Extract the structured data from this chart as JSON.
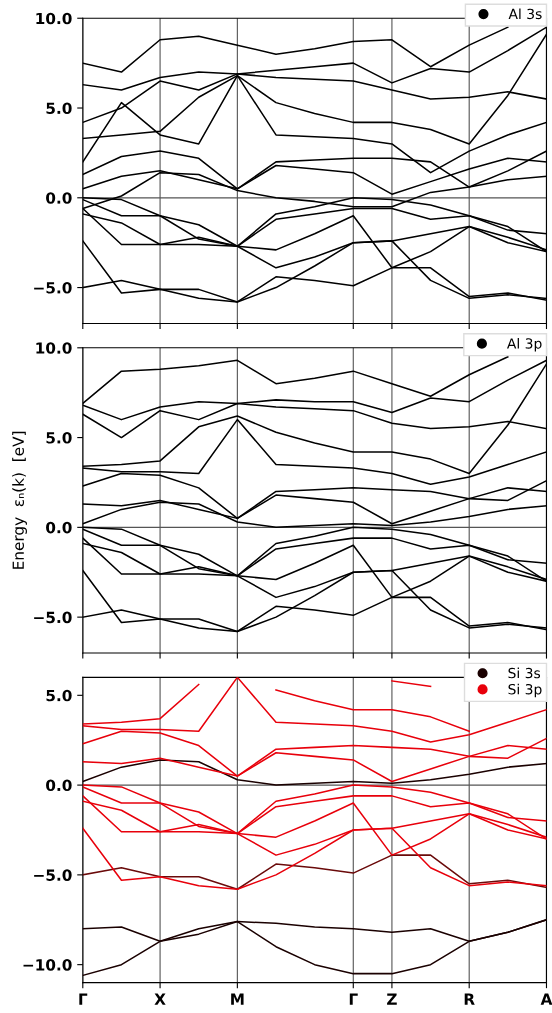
{
  "chart_data": [
    {
      "type": "line",
      "legend": "top right",
      "grid": "x",
      "tick_labels": "y",
      "line_style": "solid",
      "categories": [
        null,
        null,
        null,
        null,
        null,
        null,
        null,
        null,
        null,
        null,
        null,
        null,
        null
      ],
      "ylim": [
        -7,
        10
      ],
      "yticks": [
        {
          "value": -5,
          "label": "−5.0"
        },
        {
          "value": 0,
          "label": "0.0"
        },
        {
          "value": 5,
          "label": "5.0"
        },
        {
          "value": 10,
          "label": "10.0"
        }
      ],
      "ref_lines": [
        {
          "axis": "y",
          "value": 0,
          "color": "#555555"
        }
      ],
      "series": [
        {
          "name": "Al 3s",
          "color": "#000000",
          "values": [
            -5.0,
            -4.6,
            -5.1,
            -5.1,
            -5.8,
            -4.4,
            -4.6,
            -4.9,
            -3.9,
            -3.9,
            -5.5,
            -5.3,
            -5.7
          ]
        },
        {
          "color": "#000000",
          "values": [
            -2.4,
            -5.3,
            -5.1,
            -5.6,
            -5.8,
            -5.0,
            -3.8,
            -2.5,
            -2.4,
            -4.6,
            -5.6,
            -5.4,
            -5.6
          ]
        },
        {
          "color": "#000000",
          "values": [
            -0.9,
            -1.4,
            -2.6,
            -2.6,
            -2.7,
            -3.9,
            -3.3,
            -2.5,
            -2.4,
            -2.0,
            -1.6,
            -2.2,
            -2.9
          ]
        },
        {
          "color": "#000000",
          "values": [
            -0.6,
            -2.6,
            -2.6,
            -2.2,
            -2.7,
            -2.9,
            -2.0,
            -1.0,
            -3.9,
            -3.0,
            -1.6,
            -2.5,
            -3.0
          ]
        },
        {
          "color": "#000000",
          "values": [
            -0.1,
            -1.0,
            -1.0,
            -2.3,
            -2.7,
            -1.2,
            -0.9,
            -0.6,
            -0.6,
            -1.2,
            -1.0,
            -1.6,
            -3.0
          ]
        },
        {
          "color": "#000000",
          "values": [
            0.0,
            -0.1,
            -1.0,
            -1.5,
            -2.7,
            -0.9,
            -0.5,
            0.0,
            -0.1,
            -0.4,
            -1.0,
            -1.8,
            -2.0
          ]
        },
        {
          "color": "#000000",
          "values": [
            -0.6,
            0.1,
            1.4,
            1.3,
            0.4,
            0.0,
            -0.2,
            -0.5,
            -0.5,
            0.3,
            0.6,
            1.0,
            1.2
          ]
        },
        {
          "color": "#000000",
          "values": [
            0.5,
            1.2,
            1.5,
            1.0,
            0.5,
            1.8,
            1.6,
            1.4,
            0.2,
            0.9,
            1.6,
            2.2,
            2.0
          ]
        },
        {
          "color": "#000000",
          "values": [
            1.3,
            2.3,
            2.6,
            2.2,
            0.5,
            2.0,
            2.1,
            2.2,
            2.2,
            2.0,
            0.6,
            1.5,
            2.6
          ]
        },
        {
          "color": "#000000",
          "values": [
            2.0,
            5.3,
            3.5,
            3.0,
            6.8,
            3.5,
            3.4,
            3.3,
            3.0,
            1.4,
            2.6,
            3.5,
            4.2
          ]
        },
        {
          "color": "#000000",
          "values": [
            3.3,
            3.5,
            3.7,
            5.6,
            6.8,
            5.3,
            4.7,
            4.2,
            4.2,
            3.8,
            3.0,
            5.7,
            9.1
          ]
        },
        {
          "color": "#000000",
          "values": [
            4.2,
            5.0,
            6.5,
            6.0,
            6.9,
            6.7,
            6.6,
            6.5,
            6.0,
            5.5,
            5.6,
            5.9,
            5.5
          ]
        },
        {
          "color": "#000000",
          "values": [
            6.3,
            6.0,
            6.7,
            7.0,
            6.9,
            7.1,
            7.3,
            7.5,
            6.4,
            7.2,
            7.0,
            8.2,
            9.5
          ]
        },
        {
          "color": "#000000",
          "values": [
            7.5,
            7.0,
            8.8,
            9.0,
            8.5,
            8.0,
            8.3,
            8.7,
            8.8,
            7.3,
            8.5,
            9.5,
            null
          ]
        }
      ]
    },
    {
      "type": "line",
      "legend": "top right",
      "grid": "x",
      "tick_labels": "y",
      "line_style": "solid",
      "ylabel": "Energy  εₙ(k)  [eV]",
      "categories": [
        null,
        null,
        null,
        null,
        null,
        null,
        null,
        null,
        null,
        null,
        null,
        null,
        null
      ],
      "ylim": [
        -7,
        10
      ],
      "yticks": [
        {
          "value": -5,
          "label": "−5.0"
        },
        {
          "value": 0,
          "label": "0.0"
        },
        {
          "value": 5,
          "label": "5.0"
        },
        {
          "value": 10,
          "label": "10.0"
        }
      ],
      "ref_lines": [
        {
          "axis": "y",
          "value": 0,
          "color": "#555555"
        }
      ],
      "series": [
        {
          "name": "Al 3p",
          "color": "#000000",
          "values": [
            -5.0,
            -4.6,
            -5.1,
            -5.1,
            -5.8,
            -4.4,
            -4.6,
            -4.9,
            -3.9,
            -3.9,
            -5.5,
            -5.3,
            -5.7
          ]
        },
        {
          "color": "#000000",
          "values": [
            -2.4,
            -5.3,
            -5.1,
            -5.6,
            -5.8,
            -5.0,
            -3.8,
            -2.5,
            -2.4,
            -4.6,
            -5.6,
            -5.4,
            -5.6
          ]
        },
        {
          "color": "#000000",
          "values": [
            -0.9,
            -1.4,
            -2.6,
            -2.6,
            -2.7,
            -3.9,
            -3.3,
            -2.5,
            -2.4,
            -2.0,
            -1.6,
            -2.2,
            -2.9
          ]
        },
        {
          "color": "#000000",
          "values": [
            -0.6,
            -2.6,
            -2.6,
            -2.2,
            -2.7,
            -2.9,
            -2.0,
            -1.0,
            -3.9,
            -3.0,
            -1.6,
            -2.5,
            -3.0
          ]
        },
        {
          "color": "#000000",
          "values": [
            -0.1,
            -1.0,
            -1.0,
            -2.3,
            -2.7,
            -1.2,
            -0.9,
            -0.6,
            -0.6,
            -1.2,
            -1.0,
            -1.6,
            -3.0
          ]
        },
        {
          "color": "#000000",
          "values": [
            0.0,
            -0.1,
            -1.0,
            -1.5,
            -2.7,
            -0.9,
            -0.5,
            0.0,
            -0.1,
            -0.4,
            -1.0,
            -1.8,
            -2.0
          ]
        },
        {
          "color": "#000000",
          "values": [
            0.2,
            1.0,
            1.4,
            1.3,
            0.3,
            0.0,
            0.1,
            0.2,
            0.1,
            0.3,
            0.6,
            1.0,
            1.2
          ]
        },
        {
          "color": "#000000",
          "values": [
            1.3,
            1.2,
            1.5,
            1.0,
            0.5,
            1.8,
            1.6,
            1.4,
            0.2,
            0.9,
            1.6,
            2.2,
            2.0
          ]
        },
        {
          "color": "#000000",
          "values": [
            2.3,
            3.0,
            2.9,
            2.2,
            0.5,
            2.0,
            2.1,
            2.2,
            2.1,
            2.0,
            1.6,
            1.5,
            2.6
          ]
        },
        {
          "color": "#000000",
          "values": [
            3.3,
            3.1,
            3.1,
            3.0,
            6.0,
            3.5,
            3.4,
            3.3,
            3.0,
            2.4,
            2.8,
            3.5,
            4.2
          ]
        },
        {
          "color": "#000000",
          "values": [
            3.4,
            3.5,
            3.7,
            5.6,
            6.2,
            5.3,
            4.7,
            4.2,
            4.2,
            3.8,
            3.0,
            5.7,
            9.1
          ]
        },
        {
          "color": "#000000",
          "values": [
            6.3,
            5.0,
            6.5,
            6.0,
            6.9,
            6.7,
            6.6,
            6.5,
            5.8,
            5.5,
            5.6,
            5.9,
            5.5
          ]
        },
        {
          "color": "#000000",
          "values": [
            6.8,
            6.0,
            6.7,
            7.0,
            6.9,
            7.1,
            7.0,
            7.0,
            6.4,
            7.2,
            7.0,
            8.2,
            9.3
          ]
        },
        {
          "color": "#000000",
          "values": [
            6.9,
            8.7,
            8.8,
            9.0,
            9.3,
            8.0,
            8.3,
            8.7,
            8.0,
            7.3,
            8.5,
            9.5,
            null
          ]
        }
      ]
    },
    {
      "type": "line",
      "legend": "top right",
      "grid": "x",
      "line_style": "solid",
      "categories": [
        "Γ",
        null,
        "X",
        null,
        "M",
        null,
        null,
        "Γ",
        "Z",
        null,
        "R",
        null,
        "A"
      ],
      "ylim": [
        -11,
        6
      ],
      "yticks": [
        {
          "value": -10,
          "label": "−10.0"
        },
        {
          "value": -5,
          "label": "−5.0"
        },
        {
          "value": 0,
          "label": "0.0"
        },
        {
          "value": 5,
          "label": "5.0"
        }
      ],
      "ref_lines": [
        {
          "axis": "y",
          "value": 0,
          "color": "#555555"
        }
      ],
      "series": [
        {
          "name": "Si 3s",
          "color": "#1a0000",
          "values": [
            -8.0,
            -7.9,
            -8.7,
            -8.3,
            -7.6,
            -7.7,
            -7.9,
            -8.0,
            -8.2,
            -8.0,
            -8.7,
            -8.2,
            -7.5
          ]
        },
        {
          "color": "#1a0000",
          "values": [
            -10.6,
            -10.0,
            -8.7,
            -8.0,
            -7.6,
            -9.0,
            -10.0,
            -10.5,
            -10.5,
            -10.0,
            -8.7,
            -8.2,
            -7.5
          ]
        },
        {
          "color": "#6a0a0a",
          "values": [
            -5.0,
            -4.6,
            -5.1,
            -5.1,
            -5.8,
            -4.4,
            -4.6,
            -4.9,
            -3.9,
            -3.9,
            -5.5,
            -5.3,
            -5.7
          ]
        },
        {
          "name": "Si 3p",
          "color": "#e8000b",
          "values": [
            -2.4,
            -5.3,
            -5.1,
            -5.6,
            -5.8,
            -5.0,
            -3.8,
            -2.5,
            -2.4,
            -4.6,
            -5.6,
            -5.4,
            -5.6
          ]
        },
        {
          "color": "#e8000b",
          "values": [
            -0.9,
            -1.4,
            -2.6,
            -2.6,
            -2.7,
            -3.9,
            -3.3,
            -2.5,
            -2.4,
            -2.0,
            -1.6,
            -2.2,
            -2.9
          ]
        },
        {
          "color": "#e8000b",
          "values": [
            -0.6,
            -2.6,
            -2.6,
            -2.2,
            -2.7,
            -2.9,
            -2.0,
            -1.0,
            -3.9,
            -3.0,
            -1.6,
            -2.5,
            -3.0
          ]
        },
        {
          "color": "#e8000b",
          "values": [
            -0.1,
            -1.0,
            -1.0,
            -2.3,
            -2.7,
            -1.2,
            -0.9,
            -0.6,
            -0.6,
            -1.2,
            -1.0,
            -1.6,
            -3.0
          ]
        },
        {
          "color": "#e8000b",
          "values": [
            0.0,
            -0.1,
            -1.0,
            -1.5,
            -2.7,
            -0.9,
            -0.5,
            0.0,
            -0.1,
            -0.4,
            -1.0,
            -1.8,
            -2.0
          ]
        },
        {
          "color": "#1a0000",
          "values": [
            0.2,
            1.0,
            1.4,
            1.3,
            0.3,
            0.0,
            0.1,
            0.2,
            0.1,
            0.3,
            0.6,
            1.0,
            1.2
          ]
        },
        {
          "color": "#e8000b",
          "values": [
            1.3,
            1.2,
            1.5,
            1.0,
            0.5,
            1.8,
            1.6,
            1.4,
            0.2,
            0.9,
            1.6,
            2.2,
            2.0
          ]
        },
        {
          "color": "#e8000b",
          "values": [
            2.3,
            3.0,
            2.9,
            2.2,
            0.5,
            2.0,
            2.1,
            2.2,
            2.1,
            2.0,
            1.6,
            1.5,
            2.6
          ]
        },
        {
          "color": "#e8000b",
          "values": [
            3.3,
            3.1,
            3.1,
            3.0,
            6.0,
            3.5,
            3.4,
            3.3,
            3.0,
            2.4,
            2.8,
            3.5,
            4.2
          ]
        },
        {
          "color": "#e8000b",
          "values": [
            3.4,
            3.5,
            3.7,
            5.6,
            null,
            5.3,
            4.7,
            4.2,
            4.2,
            3.8,
            3.0,
            null,
            null
          ]
        },
        {
          "color": "#e8000b",
          "values": [
            null,
            null,
            null,
            null,
            null,
            null,
            null,
            null,
            5.8,
            5.5,
            null,
            null,
            null
          ]
        }
      ]
    }
  ]
}
